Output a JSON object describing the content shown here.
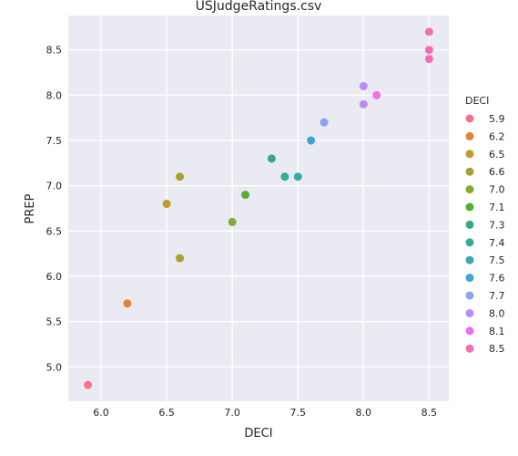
{
  "chart_data": {
    "type": "scatter",
    "title": "USJudgeRatings.csv",
    "xlabel": "DECI",
    "ylabel": "PREP",
    "xlim": [
      5.75,
      8.65
    ],
    "ylim": [
      4.62,
      8.88
    ],
    "xticks": [
      6.0,
      6.5,
      7.0,
      7.5,
      8.0,
      8.5
    ],
    "yticks": [
      5.0,
      5.5,
      6.0,
      6.5,
      7.0,
      7.5,
      8.0,
      8.5
    ],
    "grid": true,
    "legend": {
      "title": "DECI",
      "placement": "right",
      "entries": [
        {
          "label": "5.9",
          "color": "#f77189"
        },
        {
          "label": "6.2",
          "color": "#e68332"
        },
        {
          "label": "6.5",
          "color": "#c59833"
        },
        {
          "label": "6.6",
          "color": "#a8a032"
        },
        {
          "label": "7.0",
          "color": "#84ab32"
        },
        {
          "label": "7.1",
          "color": "#50b131"
        },
        {
          "label": "7.3",
          "color": "#35aa7a"
        },
        {
          "label": "7.4",
          "color": "#36ac98"
        },
        {
          "label": "7.5",
          "color": "#38a9b1"
        },
        {
          "label": "7.6",
          "color": "#3ca6ce"
        },
        {
          "label": "7.7",
          "color": "#8da3f0"
        },
        {
          "label": "8.0",
          "color": "#b98ef4"
        },
        {
          "label": "8.1",
          "color": "#ee6ef0"
        },
        {
          "label": "8.5",
          "color": "#f56db4"
        }
      ]
    },
    "series": [
      {
        "name": "5.9",
        "points": [
          [
            5.9,
            4.8
          ]
        ]
      },
      {
        "name": "6.2",
        "points": [
          [
            6.2,
            5.7
          ]
        ]
      },
      {
        "name": "6.5",
        "points": [
          [
            6.5,
            6.8
          ]
        ]
      },
      {
        "name": "6.6",
        "points": [
          [
            6.6,
            7.1
          ],
          [
            6.6,
            6.2
          ]
        ]
      },
      {
        "name": "7.0",
        "points": [
          [
            7.0,
            6.6
          ]
        ]
      },
      {
        "name": "7.1",
        "points": [
          [
            7.1,
            6.9
          ]
        ]
      },
      {
        "name": "7.3",
        "points": [
          [
            7.3,
            7.3
          ]
        ]
      },
      {
        "name": "7.4",
        "points": [
          [
            7.4,
            7.1
          ]
        ]
      },
      {
        "name": "7.5",
        "points": [
          [
            7.5,
            7.1
          ]
        ]
      },
      {
        "name": "7.6",
        "points": [
          [
            7.6,
            7.5
          ]
        ]
      },
      {
        "name": "7.7",
        "points": [
          [
            7.7,
            7.7
          ]
        ]
      },
      {
        "name": "8.0",
        "points": [
          [
            8.0,
            8.1
          ],
          [
            8.0,
            7.9
          ]
        ]
      },
      {
        "name": "8.1",
        "points": [
          [
            8.1,
            8.0
          ]
        ]
      },
      {
        "name": "8.5",
        "points": [
          [
            8.5,
            8.7
          ],
          [
            8.5,
            8.5
          ],
          [
            8.5,
            8.4
          ]
        ]
      }
    ]
  }
}
